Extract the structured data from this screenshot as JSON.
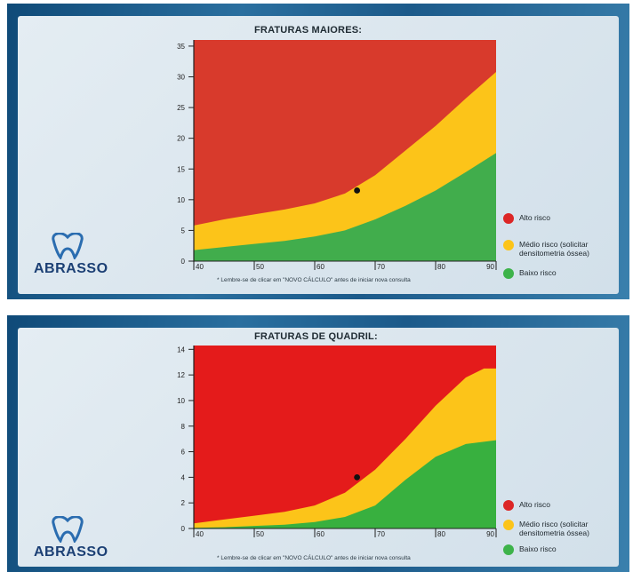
{
  "brand": {
    "name": "ABRASSO"
  },
  "note": "* Lembre-se de clicar em \"NOVO CÁLCULO\" antes de iniciar nova consulta",
  "legend": [
    {
      "label_lines": [
        "Alto risco"
      ],
      "color": "#dc2626"
    },
    {
      "label_lines": [
        "Médio risco  (solicitar",
        "densitometria óssea)"
      ],
      "color": "#fcc419"
    },
    {
      "label_lines": [
        "Baixo risco"
      ],
      "color": "#3db34a"
    }
  ],
  "chart_data": [
    {
      "type": "area",
      "title": "FRATURAS MAIORES:",
      "x_ticks": [
        40,
        50,
        60,
        70,
        80,
        90
      ],
      "y_ticks": [
        0,
        5,
        10,
        15,
        20,
        25,
        30,
        35
      ],
      "xlim": [
        40,
        90
      ],
      "ylim": [
        0,
        36
      ],
      "background_color": "#d83a2c",
      "bands": [
        {
          "name": "Médio risco",
          "color": "#fcc419",
          "upper": [
            [
              40,
              5.8
            ],
            [
              45,
              6.8
            ],
            [
              50,
              7.6
            ],
            [
              55,
              8.4
            ],
            [
              60,
              9.4
            ],
            [
              65,
              11.0
            ],
            [
              70,
              14.0
            ],
            [
              75,
              18.0
            ],
            [
              80,
              22.0
            ],
            [
              85,
              26.5
            ],
            [
              90,
              30.8
            ]
          ]
        },
        {
          "name": "Baixo risco",
          "color": "#41ad4c",
          "upper": [
            [
              40,
              1.8
            ],
            [
              45,
              2.3
            ],
            [
              50,
              2.8
            ],
            [
              55,
              3.3
            ],
            [
              60,
              4.0
            ],
            [
              65,
              5.0
            ],
            [
              70,
              6.8
            ],
            [
              75,
              9.0
            ],
            [
              80,
              11.5
            ],
            [
              85,
              14.5
            ],
            [
              90,
              17.6
            ]
          ]
        }
      ],
      "point": {
        "x": 67,
        "y": 11.5
      }
    },
    {
      "type": "area",
      "title": "FRATURAS DE QUADRIL:",
      "x_ticks": [
        40,
        50,
        60,
        70,
        80,
        90
      ],
      "y_ticks": [
        0,
        2,
        4,
        6,
        8,
        10,
        12,
        14
      ],
      "xlim": [
        40,
        90
      ],
      "ylim": [
        0,
        14.3
      ],
      "background_color": "#e41b1b",
      "bands": [
        {
          "name": "Médio risco",
          "color": "#fcc419",
          "upper": [
            [
              40,
              0.4
            ],
            [
              45,
              0.7
            ],
            [
              50,
              1.0
            ],
            [
              55,
              1.3
            ],
            [
              60,
              1.8
            ],
            [
              65,
              2.8
            ],
            [
              70,
              4.6
            ],
            [
              75,
              7.0
            ],
            [
              80,
              9.6
            ],
            [
              85,
              11.8
            ],
            [
              88,
              12.5
            ],
            [
              90,
              12.5
            ]
          ]
        },
        {
          "name": "Baixo risco",
          "color": "#38b03f",
          "upper": [
            [
              40,
              0.05
            ],
            [
              45,
              0.1
            ],
            [
              50,
              0.2
            ],
            [
              55,
              0.3
            ],
            [
              60,
              0.5
            ],
            [
              65,
              0.9
            ],
            [
              70,
              1.8
            ],
            [
              75,
              3.8
            ],
            [
              80,
              5.6
            ],
            [
              85,
              6.6
            ],
            [
              90,
              6.9
            ]
          ]
        }
      ],
      "point": {
        "x": 67,
        "y": 4.0
      }
    }
  ]
}
